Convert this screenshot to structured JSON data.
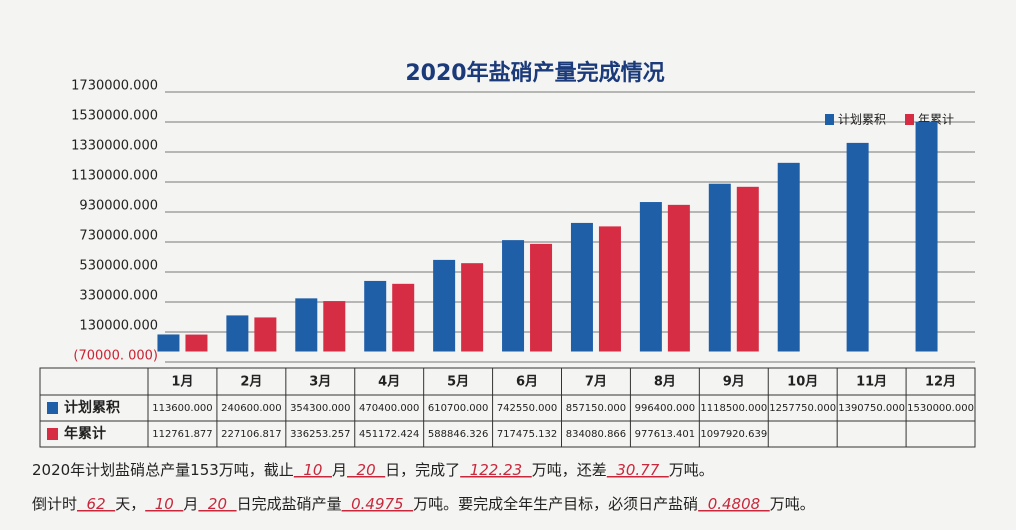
{
  "chart_data": {
    "type": "bar",
    "title": "2020年盐硝产量完成情况",
    "categories": [
      "1月",
      "2月",
      "3月",
      "4月",
      "5月",
      "6月",
      "7月",
      "8月",
      "9月",
      "10月",
      "11月",
      "12月"
    ],
    "series": [
      {
        "name": "计划累积",
        "color": "#1f5fa8",
        "values": [
          113600,
          240600,
          354300,
          470400,
          610700,
          742550,
          857150,
          996400,
          1118500,
          1257750,
          1390750,
          1530000
        ],
        "value_labels": [
          "113600.000",
          "240600.000",
          "354300.000",
          "470400.000",
          "610700.000",
          "742550.000",
          "857150.000",
          "996400.000",
          "1118500.000",
          "1257750.000",
          "1390750.000",
          "1530000.000"
        ]
      },
      {
        "name": "年累计",
        "color": "#d62d45",
        "values": [
          112761.877,
          227106.817,
          336253.257,
          451172.424,
          588846.326,
          717475.132,
          834080.866,
          977613.401,
          1097920.639,
          null,
          null,
          null
        ],
        "value_labels": [
          "112761.877",
          "227106.817",
          "336253.257",
          "451172.424",
          "588846.326",
          "717475.132",
          "834080.866",
          "977613.401",
          "1097920.639",
          null,
          null,
          null
        ]
      }
    ],
    "ylim": [
      -70000,
      1730000
    ],
    "yticks": [
      {
        "value": -70000,
        "label": "(70000. 000)"
      },
      {
        "value": 130000,
        "label": "130000.000"
      },
      {
        "value": 330000,
        "label": "330000.000"
      },
      {
        "value": 530000,
        "label": "530000.000"
      },
      {
        "value": 730000,
        "label": "730000.000"
      },
      {
        "value": 930000,
        "label": "930000.000"
      },
      {
        "value": 1130000,
        "label": "1130000.000"
      },
      {
        "value": 1330000,
        "label": "1330000.000"
      },
      {
        "value": 1530000,
        "label": "1530000.000"
      },
      {
        "value": 1730000,
        "label": "1730000.000"
      }
    ],
    "grid": true,
    "legend": "top-right"
  },
  "notes": {
    "lines": [
      [
        "2020年计划盐硝总产量153万吨，截止",
        "10",
        "月",
        "20",
        "日，完成了",
        "122.23",
        "万吨，还差",
        "30.77",
        "万吨。"
      ],
      [
        "倒计时",
        "62",
        "天，",
        "10",
        "月",
        "20",
        "日完成盐硝产量",
        "0.4975",
        "万吨。要完成全年生产目标，必须日产盐硝",
        "0.4808",
        "万吨。"
      ]
    ]
  }
}
